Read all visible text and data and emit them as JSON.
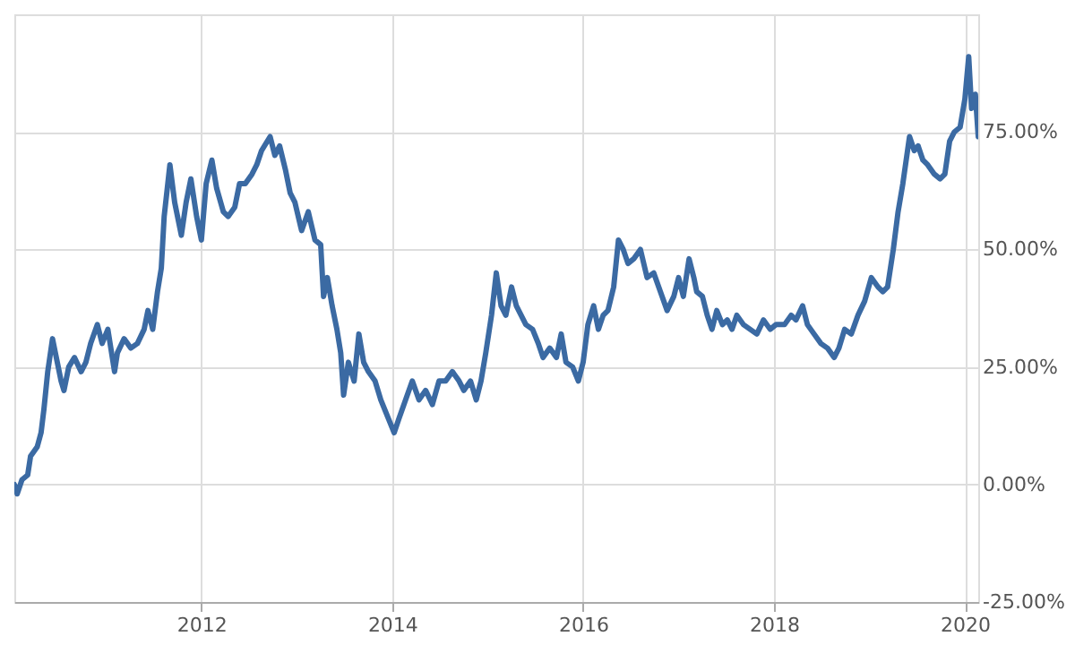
{
  "chart_data": {
    "type": "line",
    "x": [
      2010.04,
      2010.07,
      2010.12,
      2010.18,
      2010.21,
      2010.28,
      2010.32,
      2010.35,
      2010.39,
      2010.44,
      2010.47,
      2010.53,
      2010.56,
      2010.61,
      2010.67,
      2010.74,
      2010.79,
      2010.84,
      2010.91,
      2010.96,
      2011.02,
      2011.09,
      2011.12,
      2011.19,
      2011.26,
      2011.33,
      2011.4,
      2011.44,
      2011.49,
      2011.54,
      2011.58,
      2011.61,
      2011.67,
      2011.72,
      2011.79,
      2011.84,
      2011.89,
      2011.95,
      2012.0,
      2012.05,
      2012.11,
      2012.16,
      2012.23,
      2012.28,
      2012.35,
      2012.4,
      2012.46,
      2012.53,
      2012.58,
      2012.63,
      2012.72,
      2012.77,
      2012.82,
      2012.88,
      2012.93,
      2012.98,
      2013.05,
      2013.12,
      2013.19,
      2013.25,
      2013.28,
      2013.32,
      2013.37,
      2013.42,
      2013.46,
      2013.49,
      2013.54,
      2013.6,
      2013.65,
      2013.7,
      2013.75,
      2013.82,
      2013.88,
      2013.96,
      2014.02,
      2014.07,
      2014.14,
      2014.21,
      2014.28,
      2014.35,
      2014.42,
      2014.49,
      2014.56,
      2014.63,
      2014.7,
      2014.75,
      2014.82,
      2014.88,
      2014.93,
      2014.98,
      2015.04,
      2015.09,
      2015.14,
      2015.19,
      2015.25,
      2015.3,
      2015.35,
      2015.4,
      2015.47,
      2015.53,
      2015.58,
      2015.65,
      2015.72,
      2015.77,
      2015.82,
      2015.89,
      2015.95,
      2016.0,
      2016.05,
      2016.11,
      2016.16,
      2016.21,
      2016.26,
      2016.32,
      2016.37,
      2016.42,
      2016.47,
      2016.53,
      2016.6,
      2016.67,
      2016.74,
      2016.81,
      2016.88,
      2016.95,
      2017.0,
      2017.05,
      2017.11,
      2017.16,
      2017.19,
      2017.25,
      2017.3,
      2017.35,
      2017.4,
      2017.46,
      2017.51,
      2017.56,
      2017.61,
      2017.68,
      2017.75,
      2017.82,
      2017.89,
      2017.96,
      2018.02,
      2018.11,
      2018.18,
      2018.23,
      2018.3,
      2018.35,
      2018.42,
      2018.49,
      2018.56,
      2018.63,
      2018.68,
      2018.74,
      2018.81,
      2018.88,
      2018.95,
      2019.02,
      2019.09,
      2019.14,
      2019.19,
      2019.25,
      2019.3,
      2019.35,
      2019.42,
      2019.47,
      2019.51,
      2019.56,
      2019.61,
      2019.68,
      2019.74,
      2019.79,
      2019.84,
      2019.89,
      2019.95,
      2020.0,
      2020.04,
      2020.07,
      2020.11,
      2020.14
    ],
    "series": [
      {
        "color": "#3b6aa3",
        "values": [
          0,
          -2,
          1,
          2,
          6,
          8,
          11,
          16,
          24,
          31,
          28,
          22,
          20,
          25,
          27,
          24,
          26,
          30,
          34,
          30,
          33,
          24,
          28,
          31,
          29,
          30,
          33,
          37,
          33,
          41,
          46,
          57,
          68,
          60,
          53,
          60,
          65,
          57,
          52,
          64,
          69,
          63,
          58,
          57,
          59,
          64,
          64,
          66,
          68,
          71,
          74,
          70,
          72,
          67,
          62,
          60,
          54,
          58,
          52,
          51,
          40,
          44,
          38,
          33,
          28,
          19,
          26,
          22,
          32,
          26,
          24,
          22,
          18,
          14,
          11,
          14,
          18,
          22,
          18,
          20,
          17,
          22,
          22,
          24,
          22,
          20,
          22,
          18,
          22,
          28,
          36,
          45,
          38,
          36,
          42,
          38,
          36,
          34,
          33,
          30,
          27,
          29,
          27,
          32,
          26,
          25,
          22,
          26,
          34,
          38,
          33,
          36,
          37,
          42,
          52,
          50,
          47,
          48,
          50,
          44,
          45,
          41,
          37,
          40,
          44,
          40,
          48,
          44,
          41,
          40,
          36,
          33,
          37,
          34,
          35,
          33,
          36,
          34,
          33,
          32,
          35,
          33,
          34,
          34,
          36,
          35,
          38,
          34,
          32,
          30,
          29,
          27,
          29,
          33,
          32,
          36,
          39,
          44,
          42,
          41,
          42,
          50,
          58,
          64,
          74,
          71,
          72,
          69,
          68,
          66,
          65,
          66,
          73,
          75,
          76,
          82,
          91,
          80,
          83,
          74
        ]
      }
    ],
    "xlim": [
      2010.04,
      2020.14
    ],
    "xticks": [
      2012,
      2014,
      2016,
      2018,
      2020
    ],
    "ylim": [
      -25,
      100
    ],
    "yticks": [
      {
        "value": -25,
        "label": "-25.00%"
      },
      {
        "value": 0,
        "label": "0.00%"
      },
      {
        "value": 25,
        "label": "25.00%"
      },
      {
        "value": 50,
        "label": "50.00%"
      },
      {
        "value": 75,
        "label": "75.00%"
      }
    ],
    "grid": true,
    "marker": "none",
    "line_style": "solid"
  }
}
